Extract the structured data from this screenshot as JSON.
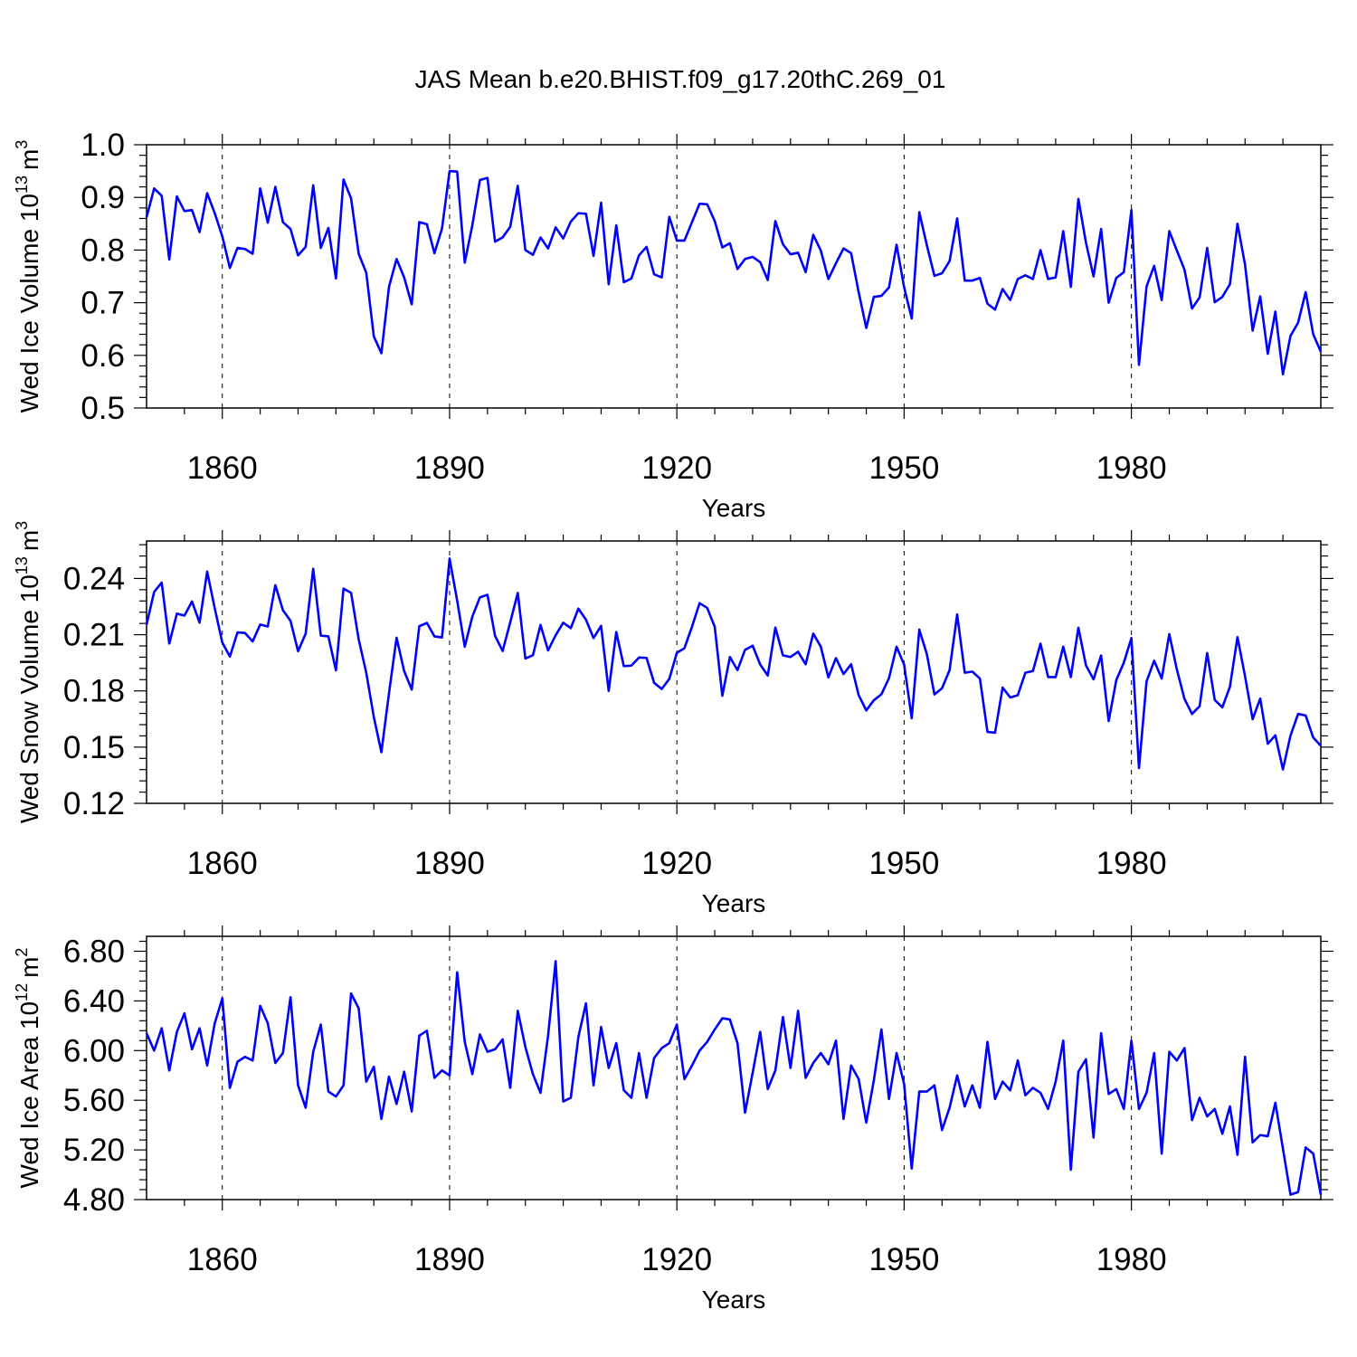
{
  "figure": {
    "title": "JAS Mean b.e20.BHIST.f09_g17.20thC.269_01"
  },
  "chart_data": [
    {
      "type": "line",
      "title": "JAS Mean b.e20.BHIST.f09_g17.20thC.269_01",
      "xlabel": "Years",
      "ylabel_main": "Wed Ice Volume 10",
      "ylabel_exp": "13",
      "ylabel_unit": "m",
      "ylabel_unit_exp": "3",
      "xlim": [
        1850,
        2005
      ],
      "ylim": [
        0.5,
        1.0
      ],
      "xticks": [
        1860,
        1890,
        1920,
        1950,
        1980
      ],
      "xtick_labels": [
        "1860",
        "1890",
        "1920",
        "1950",
        "1980"
      ],
      "yticks": [
        0.5,
        0.6,
        0.7,
        0.8,
        0.9,
        1.0
      ],
      "ytick_labels": [
        "0.5",
        "0.6",
        "0.7",
        "0.8",
        "0.9",
        "1.0"
      ],
      "series": [
        {
          "name": "Wed Ice Volume",
          "color": "#0000ff",
          "x_start": 1850,
          "values": [
            0.862,
            0.917,
            0.903,
            0.782,
            0.902,
            0.874,
            0.876,
            0.834,
            0.908,
            0.87,
            0.826,
            0.766,
            0.804,
            0.802,
            0.793,
            0.917,
            0.852,
            0.92,
            0.853,
            0.84,
            0.79,
            0.806,
            0.923,
            0.804,
            0.842,
            0.746,
            0.934,
            0.898,
            0.793,
            0.757,
            0.636,
            0.604,
            0.73,
            0.783,
            0.748,
            0.697,
            0.853,
            0.849,
            0.794,
            0.841,
            0.95,
            0.949,
            0.776,
            0.847,
            0.933,
            0.937,
            0.816,
            0.824,
            0.844,
            0.922,
            0.8,
            0.791,
            0.824,
            0.803,
            0.843,
            0.822,
            0.854,
            0.87,
            0.869,
            0.789,
            0.89,
            0.735,
            0.847,
            0.739,
            0.746,
            0.79,
            0.806,
            0.754,
            0.748,
            0.863,
            0.818,
            0.818,
            0.853,
            0.888,
            0.887,
            0.855,
            0.805,
            0.813,
            0.764,
            0.783,
            0.787,
            0.777,
            0.743,
            0.855,
            0.811,
            0.792,
            0.795,
            0.758,
            0.829,
            0.799,
            0.745,
            0.775,
            0.803,
            0.794,
            0.72,
            0.652,
            0.711,
            0.713,
            0.729,
            0.81,
            0.729,
            0.67,
            0.872,
            0.809,
            0.751,
            0.756,
            0.779,
            0.86,
            0.742,
            0.742,
            0.747,
            0.698,
            0.687,
            0.726,
            0.705,
            0.745,
            0.752,
            0.745,
            0.8,
            0.745,
            0.748,
            0.836,
            0.73,
            0.897,
            0.814,
            0.75,
            0.84,
            0.7,
            0.747,
            0.758,
            0.876,
            0.582,
            0.731,
            0.77,
            0.705,
            0.836,
            0.799,
            0.763,
            0.689,
            0.71,
            0.804,
            0.701,
            0.711,
            0.735,
            0.85,
            0.772,
            0.647,
            0.712,
            0.603,
            0.683,
            0.564,
            0.637,
            0.662,
            0.72,
            0.64,
            0.607
          ]
        }
      ]
    },
    {
      "type": "line",
      "xlabel": "Years",
      "ylabel_main": "Wed Snow Volume 10",
      "ylabel_exp": "13",
      "ylabel_unit": "m",
      "ylabel_unit_exp": "3",
      "xlim": [
        1850,
        2005
      ],
      "ylim": [
        0.12,
        0.26
      ],
      "xticks": [
        1860,
        1890,
        1920,
        1950,
        1980
      ],
      "xtick_labels": [
        "1860",
        "1890",
        "1920",
        "1950",
        "1980"
      ],
      "yticks": [
        0.12,
        0.15,
        0.18,
        0.21,
        0.24
      ],
      "ytick_labels": [
        "0.12",
        "0.15",
        "0.18",
        "0.21",
        "0.24"
      ],
      "series": [
        {
          "name": "Wed Snow Volume",
          "color": "#0000ff",
          "x_start": 1850,
          "values": [
            0.2153,
            0.2328,
            0.2378,
            0.2053,
            0.2212,
            0.2202,
            0.2277,
            0.2164,
            0.2437,
            0.2241,
            0.2058,
            0.1983,
            0.2112,
            0.2109,
            0.2064,
            0.2154,
            0.2144,
            0.2364,
            0.2231,
            0.2174,
            0.2012,
            0.2105,
            0.2452,
            0.2095,
            0.2091,
            0.191,
            0.2346,
            0.2323,
            0.2075,
            0.1897,
            0.166,
            0.1473,
            0.1787,
            0.2084,
            0.1906,
            0.1807,
            0.2145,
            0.2163,
            0.2091,
            0.2085,
            0.2506,
            0.2282,
            0.2036,
            0.2196,
            0.2299,
            0.2313,
            0.2094,
            0.2013,
            0.2165,
            0.2323,
            0.1973,
            0.199,
            0.2152,
            0.2016,
            0.2097,
            0.2164,
            0.2135,
            0.2239,
            0.218,
            0.2082,
            0.2147,
            0.18,
            0.2114,
            0.1932,
            0.1935,
            0.1978,
            0.1976,
            0.1843,
            0.181,
            0.1864,
            0.2003,
            0.2028,
            0.2143,
            0.2268,
            0.2243,
            0.2142,
            0.1774,
            0.1981,
            0.1911,
            0.2019,
            0.2041,
            0.1941,
            0.1882,
            0.2138,
            0.199,
            0.1981,
            0.2009,
            0.1942,
            0.2106,
            0.2036,
            0.1872,
            0.1975,
            0.189,
            0.1942,
            0.1777,
            0.1696,
            0.175,
            0.1782,
            0.1868,
            0.2036,
            0.194,
            0.1654,
            0.2127,
            0.1996,
            0.1781,
            0.1814,
            0.1911,
            0.2208,
            0.1897,
            0.1903,
            0.1866,
            0.1581,
            0.1577,
            0.1818,
            0.1765,
            0.1777,
            0.1897,
            0.1906,
            0.2052,
            0.1874,
            0.1874,
            0.2036,
            0.1874,
            0.2137,
            0.1936,
            0.1862,
            0.1989,
            0.1639,
            0.1857,
            0.1951,
            0.2082,
            0.1388,
            0.1851,
            0.1961,
            0.1866,
            0.2103,
            0.1914,
            0.1758,
            0.1677,
            0.1718,
            0.2002,
            0.1752,
            0.1712,
            0.1822,
            0.2087,
            0.1878,
            0.1649,
            0.1759,
            0.1518,
            0.1563,
            0.1381,
            0.1562,
            0.1677,
            0.1669,
            0.1551,
            0.1507
          ]
        }
      ]
    },
    {
      "type": "line",
      "xlabel": "Years",
      "ylabel_main": "Wed Ice Area 10",
      "ylabel_exp": "12",
      "ylabel_unit": "m",
      "ylabel_unit_exp": "2",
      "xlim": [
        1850,
        2005
      ],
      "ylim": [
        4.8,
        6.92
      ],
      "xticks": [
        1860,
        1890,
        1920,
        1950,
        1980
      ],
      "xtick_labels": [
        "1860",
        "1890",
        "1920",
        "1950",
        "1980"
      ],
      "yticks": [
        4.8,
        5.2,
        5.6,
        6.0,
        6.4,
        6.8
      ],
      "ytick_labels": [
        "4.80",
        "5.20",
        "5.60",
        "6.00",
        "6.40",
        "6.80"
      ],
      "series": [
        {
          "name": "Wed Ice Area",
          "color": "#0000ff",
          "x_start": 1850,
          "values": [
            6.14,
            6.0,
            6.18,
            5.84,
            6.15,
            6.3,
            6.01,
            6.18,
            5.88,
            6.22,
            6.42,
            5.7,
            5.91,
            5.95,
            5.92,
            6.36,
            6.22,
            5.9,
            5.98,
            6.43,
            5.72,
            5.54,
            5.99,
            6.21,
            5.67,
            5.63,
            5.72,
            6.46,
            6.34,
            5.75,
            5.87,
            5.45,
            5.79,
            5.57,
            5.83,
            5.51,
            6.12,
            6.16,
            5.78,
            5.84,
            5.8,
            6.63,
            6.07,
            5.81,
            6.13,
            5.99,
            6.01,
            6.09,
            5.7,
            6.32,
            6.03,
            5.81,
            5.66,
            6.12,
            6.72,
            5.59,
            5.62,
            6.11,
            6.38,
            5.72,
            6.19,
            5.86,
            6.06,
            5.68,
            5.62,
            5.98,
            5.62,
            5.94,
            6.02,
            6.06,
            6.21,
            5.77,
            5.88,
            6.0,
            6.07,
            6.17,
            6.26,
            6.25,
            6.06,
            5.5,
            5.82,
            6.15,
            5.69,
            5.84,
            6.27,
            5.86,
            6.32,
            5.78,
            5.9,
            5.98,
            5.89,
            6.08,
            5.45,
            5.88,
            5.77,
            5.42,
            5.76,
            6.17,
            5.61,
            5.98,
            5.73,
            5.05,
            5.67,
            5.67,
            5.72,
            5.36,
            5.54,
            5.8,
            5.55,
            5.72,
            5.54,
            6.07,
            5.61,
            5.75,
            5.68,
            5.92,
            5.64,
            5.7,
            5.66,
            5.53,
            5.75,
            6.08,
            5.04,
            5.83,
            5.93,
            5.3,
            6.14,
            5.65,
            5.69,
            5.53,
            6.08,
            5.53,
            5.66,
            5.98,
            5.17,
            5.99,
            5.92,
            6.02,
            5.44,
            5.62,
            5.47,
            5.53,
            5.33,
            5.55,
            5.16,
            5.95,
            5.26,
            5.32,
            5.31,
            5.58,
            5.21,
            4.84,
            4.86,
            5.22,
            5.17,
            4.84
          ]
        }
      ]
    }
  ]
}
